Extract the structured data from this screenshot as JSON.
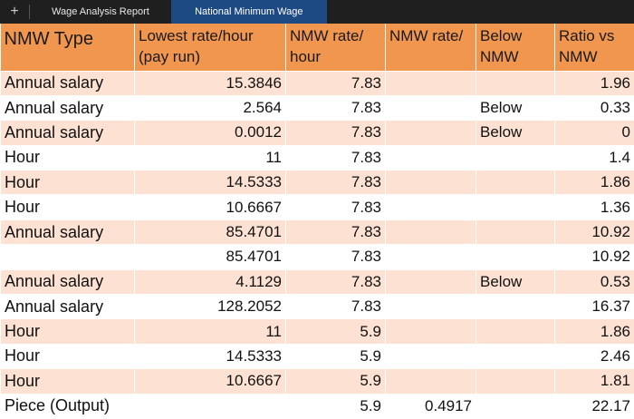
{
  "tabs": {
    "add": "+",
    "sheets": [
      "Wage Analysis Report",
      "National Minimum Wage"
    ]
  },
  "table": {
    "header": [
      "NMW Type",
      "Lowest rate/hour (pay run)",
      "NMW rate/ hour",
      "NMW rate/",
      "Below NMW",
      "Ratio vs NMW"
    ],
    "rows": [
      [
        "Annual salary",
        15.3846,
        7.83,
        null,
        null,
        1.96
      ],
      [
        "Annual salary",
        2.564,
        7.83,
        null,
        "Below",
        0.33
      ],
      [
        "Annual salary",
        0.0012,
        7.83,
        null,
        "Below",
        0
      ],
      [
        "Hour",
        11,
        7.83,
        null,
        null,
        1.4
      ],
      [
        "Hour",
        14.5333,
        7.83,
        null,
        null,
        1.86
      ],
      [
        "Hour",
        10.6667,
        7.83,
        null,
        null,
        1.36
      ],
      [
        "Annual salary",
        85.4701,
        7.83,
        null,
        null,
        10.92
      ],
      [
        null,
        85.4701,
        7.83,
        null,
        null,
        10.92
      ],
      [
        "Annual salary",
        4.1129,
        7.83,
        null,
        "Below",
        0.53
      ],
      [
        "Annual salary",
        128.2052,
        7.83,
        null,
        null,
        16.37
      ],
      [
        "Hour",
        11,
        5.9,
        null,
        null,
        1.86
      ],
      [
        "Hour",
        14.5333,
        5.9,
        null,
        null,
        2.46
      ],
      [
        "Hour",
        10.6667,
        5.9,
        null,
        null,
        1.81
      ],
      [
        "Piece (Output)",
        null,
        5.9,
        0.4917,
        null,
        22.17
      ]
    ]
  }
}
